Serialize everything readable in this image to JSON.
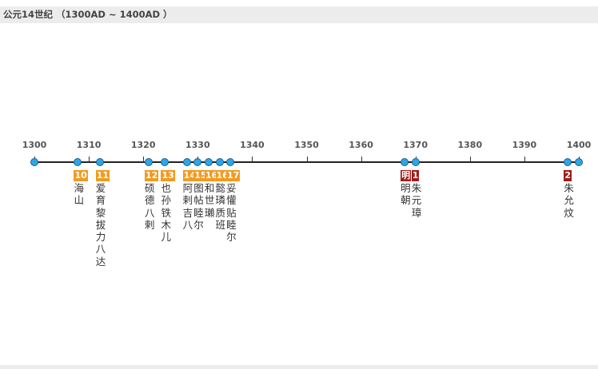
{
  "header": {
    "title": "公元14世纪 （1300AD ~ 1400AD ）"
  },
  "axis": {
    "start": 1300,
    "end": 1400,
    "ticks": [
      "1300",
      "1310",
      "1320",
      "1330",
      "1340",
      "1350",
      "1360",
      "1370",
      "1380",
      "1390",
      "1400"
    ]
  },
  "colors": {
    "yuan_badge": "#f39a1f",
    "ming_badge": "#a21a1a",
    "dot_fill": "#2da6e6",
    "axis_line": "#222222"
  },
  "events": [
    {
      "year": 1300,
      "badge": "",
      "name": ""
    },
    {
      "year": 1308,
      "badge": "10",
      "name": "海山",
      "badge_color": "orange"
    },
    {
      "year": 1312,
      "badge": "11",
      "name": "爱育黎拔力八达",
      "badge_color": "orange"
    },
    {
      "year": 1321,
      "badge": "12",
      "name": "硕德八剌",
      "badge_color": "orange"
    },
    {
      "year": 1324,
      "badge": "13",
      "name": "也孙铁木儿",
      "badge_color": "orange"
    },
    {
      "year": 1328,
      "badge": "14",
      "name": "阿剌吉八",
      "badge_color": "orange"
    },
    {
      "year": 1330,
      "badge": "15",
      "name": "图帖睦尔",
      "badge_color": "orange"
    },
    {
      "year": 1332,
      "badge": "16",
      "name": "和世瓎",
      "badge_color": "orange"
    },
    {
      "year": 1334,
      "badge": "16",
      "name": "懿璘质班",
      "badge_color": "orange"
    },
    {
      "year": 1336,
      "badge": "17",
      "name": "妥懽贴睦尔",
      "badge_color": "orange"
    },
    {
      "year": 1368,
      "badge": "明",
      "name": "明朝",
      "badge_color": "red"
    },
    {
      "year": 1370,
      "badge": "1",
      "name": "朱元璋",
      "badge_color": "red"
    },
    {
      "year": 1398,
      "badge": "2",
      "name": "朱允炆",
      "badge_color": "red"
    },
    {
      "year": 1400,
      "badge": "",
      "name": ""
    }
  ]
}
